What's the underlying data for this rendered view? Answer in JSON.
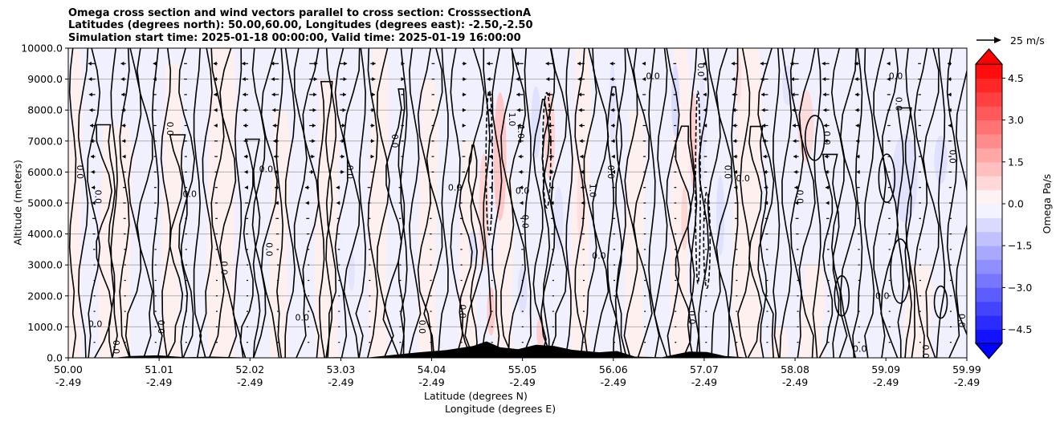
{
  "title": {
    "line1": "Omega cross section and wind vectors parallel to cross section: CrosssectionA",
    "line2": "Latitudes (degrees north): 50.00,60.00, Longitudes (degrees east): -2.50,-2.50",
    "line3": "Simulation start time: 2025-01-18 00:00:00, Valid time: 2025-01-19 16:00:00"
  },
  "chart_data": {
    "type": "heatmap",
    "subtype": "contour cross section with wind vectors",
    "ylabel": "Altitude (meters)",
    "xlabel_line1": "Latitude (degrees N)",
    "xlabel_line2": "Longitude (degrees E)",
    "ylim": [
      0,
      10000
    ],
    "y_ticks": [
      0,
      1000,
      2000,
      3000,
      4000,
      5000,
      6000,
      7000,
      8000,
      9000,
      10000
    ],
    "y_tick_labels": [
      "0.0",
      "1000.0",
      "2000.0",
      "3000.0",
      "4000.0",
      "5000.0",
      "6000.0",
      "7000.0",
      "8000.0",
      "9000.0",
      "10000.0"
    ],
    "xlim": [
      50.0,
      59.99
    ],
    "x_ticks": [
      50.0,
      51.01,
      52.02,
      53.03,
      54.04,
      55.05,
      56.06,
      57.07,
      58.08,
      59.09,
      59.99
    ],
    "x_tick_lat_labels": [
      "50.00",
      "51.01",
      "52.02",
      "53.03",
      "54.04",
      "55.05",
      "56.06",
      "57.07",
      "58.08",
      "59.09",
      "59.99"
    ],
    "x_tick_lon_labels": [
      "-2.49",
      "-2.49",
      "-2.49",
      "-2.49",
      "-2.49",
      "-2.49",
      "-2.49",
      "-2.49",
      "-2.49",
      "-2.49",
      "-2.49"
    ],
    "grid": "horizontal",
    "colorbar": {
      "label": "Omega Pa/s",
      "range": [
        -5.0,
        5.0
      ],
      "ticks": [
        -4.5,
        -3.0,
        -1.5,
        0.0,
        1.5,
        3.0,
        4.5
      ],
      "tick_labels": [
        "−4.5",
        "−3.0",
        "−1.5",
        "0.0",
        "1.5",
        "3.0",
        "4.5"
      ],
      "extend": "both",
      "colormap": "bwr"
    },
    "reference_vector": {
      "speed": 25,
      "label": "25 m/s"
    },
    "contour_labels": [
      {
        "text": "0.0",
        "lat": 50.1,
        "alt": 6000
      },
      {
        "text": "0.0",
        "lat": 50.3,
        "alt": 5200
      },
      {
        "text": "0.0",
        "lat": 50.3,
        "alt": 1000
      },
      {
        "text": "0.0",
        "lat": 50.5,
        "alt": 350
      },
      {
        "text": "0.0",
        "lat": 51.1,
        "alt": 7400
      },
      {
        "text": "0.0",
        "lat": 51.35,
        "alt": 5200
      },
      {
        "text": "0.0",
        "lat": 51.7,
        "alt": 2900
      },
      {
        "text": "0.0",
        "lat": 52.2,
        "alt": 3500
      },
      {
        "text": "0.0",
        "lat": 52.2,
        "alt": 6000
      },
      {
        "text": "0.0",
        "lat": 53.1,
        "alt": 6000
      },
      {
        "text": "0.0",
        "lat": 53.6,
        "alt": 7000
      },
      {
        "text": "0.0",
        "lat": 54.3,
        "alt": 5400
      },
      {
        "text": "0.0",
        "lat": 54.35,
        "alt": 1500
      },
      {
        "text": "1.0",
        "lat": 54.9,
        "alt": 7700
      },
      {
        "text": "0.0",
        "lat": 55.05,
        "alt": 5300
      },
      {
        "text": "0.0",
        "lat": 55.05,
        "alt": 4400
      },
      {
        "text": "1.0",
        "lat": 55.0,
        "alt": 7300
      },
      {
        "text": "0.0",
        "lat": 55.9,
        "alt": 3200
      },
      {
        "text": "1.0",
        "lat": 55.8,
        "alt": 5400
      },
      {
        "text": "0.0",
        "lat": 56.0,
        "alt": 6000
      },
      {
        "text": "0.0",
        "lat": 56.5,
        "alt": 9000
      },
      {
        "text": "0.0",
        "lat": 57.0,
        "alt": 9300
      },
      {
        "text": "0.0",
        "lat": 57.3,
        "alt": 6000
      },
      {
        "text": "0.0",
        "lat": 57.5,
        "alt": 5700
      },
      {
        "text": "0.0",
        "lat": 58.1,
        "alt": 5200
      },
      {
        "text": "0.0",
        "lat": 58.4,
        "alt": 7100
      },
      {
        "text": "0.0",
        "lat": 59.2,
        "alt": 9000
      },
      {
        "text": "0.0",
        "lat": 59.2,
        "alt": 8200
      },
      {
        "text": "0.0",
        "lat": 59.8,
        "alt": 6500
      },
      {
        "text": "0.0",
        "lat": 59.05,
        "alt": 1900
      },
      {
        "text": "0.0",
        "lat": 59.9,
        "alt": 1200
      },
      {
        "text": "0.0",
        "lat": 51.0,
        "alt": 1000
      },
      {
        "text": "0.0",
        "lat": 52.6,
        "alt": 1200
      },
      {
        "text": "0.0",
        "lat": 53.9,
        "alt": 1000
      },
      {
        "text": "0.0",
        "lat": 56.9,
        "alt": 1300
      },
      {
        "text": "0.0",
        "lat": 58.8,
        "alt": 200
      },
      {
        "text": "0.0",
        "lat": 59.5,
        "alt": 200
      }
    ]
  }
}
